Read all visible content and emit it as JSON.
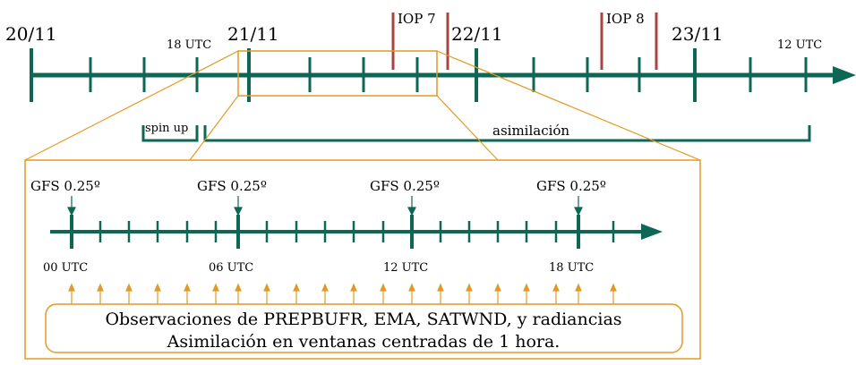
{
  "top_timeline": {
    "dates": [
      "20/11",
      "21/11",
      "22/11",
      "23/11"
    ],
    "time_labels": [
      "18 UTC",
      "12 UTC"
    ],
    "iops": [
      "IOP 7",
      "IOP 8"
    ],
    "phases": {
      "spinup": "spin up",
      "assimilation": "asimilación"
    }
  },
  "zoom_timeline": {
    "gfs_labels": [
      "GFS 0.25º",
      "GFS 0.25º",
      "GFS 0.25º",
      "GFS 0.25º"
    ],
    "utc_labels": [
      "00 UTC",
      "06 UTC",
      "12 UTC",
      "18 UTC"
    ],
    "observations": {
      "line1": "Observaciones de PREPBUFR, EMA, SATWND, y radiancias",
      "line2": "Asimilación en ventanas centradas de 1 hora."
    }
  },
  "colors": {
    "timeline": "#0e6655",
    "accent": "#e39a22",
    "iop": "#a94442"
  }
}
